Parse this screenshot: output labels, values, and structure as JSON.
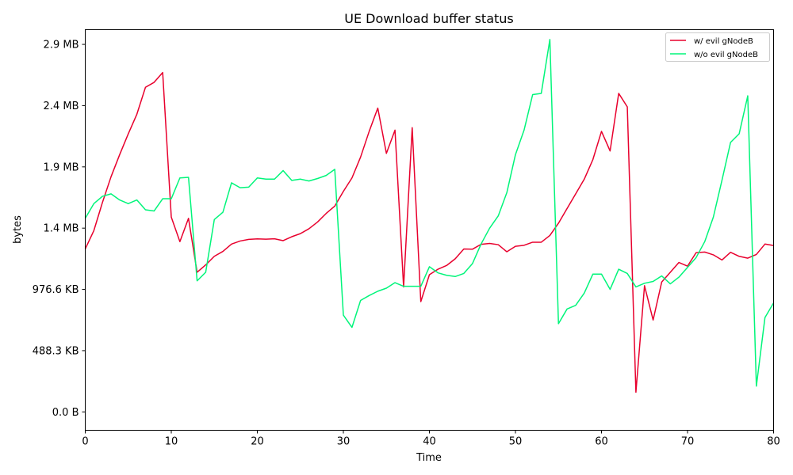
{
  "chart_data": {
    "type": "line",
    "title": "UE Download buffer status",
    "xlabel": "Time",
    "ylabel": "bytes",
    "xlim": [
      0,
      80
    ],
    "ylim": [
      -150000,
      3120000
    ],
    "x_ticks": [
      0,
      10,
      20,
      30,
      40,
      50,
      60,
      70,
      80
    ],
    "y_ticks": [
      {
        "value": 0,
        "label": "0.0 B"
      },
      {
        "value": 500000,
        "label": "488.3 KB"
      },
      {
        "value": 1000000,
        "label": "976.6 KB"
      },
      {
        "value": 1500000,
        "label": "1.4 MB"
      },
      {
        "value": 2000000,
        "label": "1.9 MB"
      },
      {
        "value": 2500000,
        "label": "2.4 MB"
      },
      {
        "value": 3000000,
        "label": "2.9 MB"
      }
    ],
    "grid": false,
    "legend_position": "top-right",
    "series": [
      {
        "name": "w/ evil gNodeB",
        "color": "#e8002d",
        "x": [
          0,
          1,
          2,
          3,
          4,
          5,
          6,
          7,
          8,
          9,
          10,
          11,
          12,
          13,
          14,
          15,
          16,
          17,
          18,
          19,
          20,
          21,
          22,
          23,
          24,
          25,
          26,
          27,
          28,
          29,
          30,
          31,
          32,
          33,
          34,
          35,
          36,
          37,
          38,
          39,
          40,
          41,
          42,
          43,
          44,
          45,
          46,
          47,
          48,
          49,
          50,
          51,
          52,
          53,
          54,
          55,
          56,
          57,
          58,
          59,
          60,
          61,
          62,
          63,
          64,
          65,
          66,
          67,
          68,
          69,
          70,
          71,
          72,
          73,
          74,
          75,
          76,
          77,
          78,
          79,
          80
        ],
        "values": [
          1330000,
          1480000,
          1710000,
          1920000,
          2100000,
          2270000,
          2430000,
          2650000,
          2690000,
          2770000,
          1590000,
          1390000,
          1580000,
          1140000,
          1200000,
          1270000,
          1310000,
          1370000,
          1395000,
          1408000,
          1412000,
          1410000,
          1413000,
          1398000,
          1430000,
          1455000,
          1495000,
          1550000,
          1620000,
          1680000,
          1800000,
          1910000,
          2080000,
          2290000,
          2480000,
          2110000,
          2300000,
          1020000,
          2320000,
          900000,
          1120000,
          1165000,
          1195000,
          1250000,
          1330000,
          1328000,
          1368000,
          1375000,
          1365000,
          1307000,
          1352000,
          1360000,
          1385000,
          1385000,
          1440000,
          1540000,
          1660000,
          1780000,
          1900000,
          2060000,
          2290000,
          2130000,
          2600000,
          2490000,
          160000,
          1030000,
          750000,
          1060000,
          1140000,
          1220000,
          1190000,
          1300000,
          1305000,
          1282000,
          1240000,
          1303000,
          1270000,
          1255000,
          1285000,
          1370000,
          1358000
        ]
      },
      {
        "name": "w/o evil gNodeB",
        "color": "#00f57a",
        "x": [
          0,
          1,
          2,
          3,
          4,
          5,
          6,
          7,
          8,
          9,
          10,
          11,
          12,
          13,
          14,
          15,
          16,
          17,
          18,
          19,
          20,
          21,
          22,
          23,
          24,
          25,
          26,
          27,
          28,
          29,
          30,
          31,
          32,
          33,
          34,
          35,
          36,
          37,
          38,
          39,
          40,
          41,
          42,
          43,
          44,
          45,
          46,
          47,
          48,
          49,
          50,
          51,
          52,
          53,
          54,
          55,
          56,
          57,
          58,
          59,
          60,
          61,
          62,
          63,
          64,
          65,
          66,
          67,
          68,
          69,
          70,
          71,
          72,
          73,
          74,
          75,
          76,
          77,
          78,
          79,
          80
        ],
        "values": [
          1580000,
          1700000,
          1760000,
          1780000,
          1730000,
          1700000,
          1730000,
          1650000,
          1640000,
          1740000,
          1740000,
          1910000,
          1915000,
          1070000,
          1140000,
          1570000,
          1630000,
          1870000,
          1830000,
          1835000,
          1910000,
          1900000,
          1900000,
          1970000,
          1890000,
          1900000,
          1885000,
          1905000,
          1930000,
          1980000,
          790000,
          690000,
          910000,
          950000,
          985000,
          1010000,
          1055000,
          1025000,
          1025000,
          1025000,
          1185000,
          1135000,
          1115000,
          1105000,
          1130000,
          1210000,
          1370000,
          1500000,
          1600000,
          1790000,
          2100000,
          2300000,
          2590000,
          2600000,
          3040000,
          720000,
          840000,
          870000,
          970000,
          1125000,
          1125000,
          1000000,
          1165000,
          1130000,
          1020000,
          1050000,
          1065000,
          1110000,
          1045000,
          1100000,
          1180000,
          1260000,
          1390000,
          1590000,
          1890000,
          2200000,
          2270000,
          2580000,
          210000,
          770000,
          890000
        ]
      }
    ]
  }
}
